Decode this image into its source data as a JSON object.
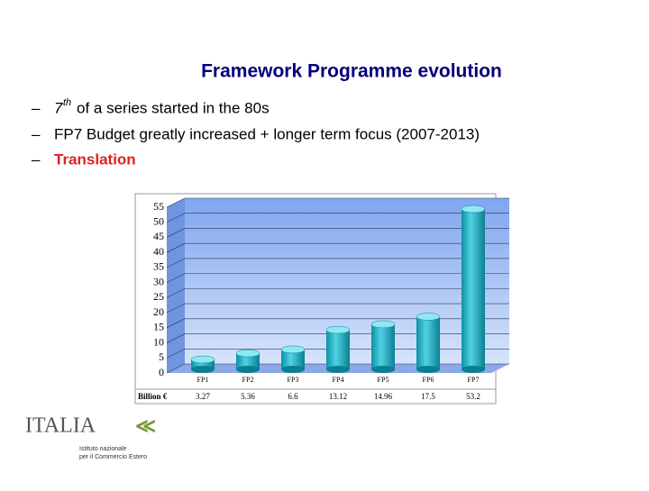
{
  "title": "Framework Programme evolution",
  "bullets": [
    {
      "number": "7",
      "sup": "th",
      "text": "of a series started in the 80s"
    },
    {
      "text": "FP7 Budget greatly increased + longer term focus (2007-2013)"
    },
    {
      "text": "Translation"
    }
  ],
  "logo": {
    "name": "ITALIA",
    "line1": "Istituto nazionale",
    "line2": "per il Commercio Estero"
  },
  "chart_data": {
    "type": "bar",
    "unit_label": "Billion €",
    "categories": [
      "FP1",
      "FP2",
      "FP3",
      "FP4",
      "FP5",
      "FP6",
      "FP7"
    ],
    "values": [
      3.27,
      5.36,
      6.6,
      13.12,
      14.96,
      17.5,
      53.2
    ],
    "color": "#1ab3c6",
    "ylim": [
      0,
      55
    ],
    "yticks": [
      0,
      5,
      10,
      15,
      20,
      25,
      30,
      35,
      40,
      45,
      50,
      55
    ],
    "grid": true
  }
}
